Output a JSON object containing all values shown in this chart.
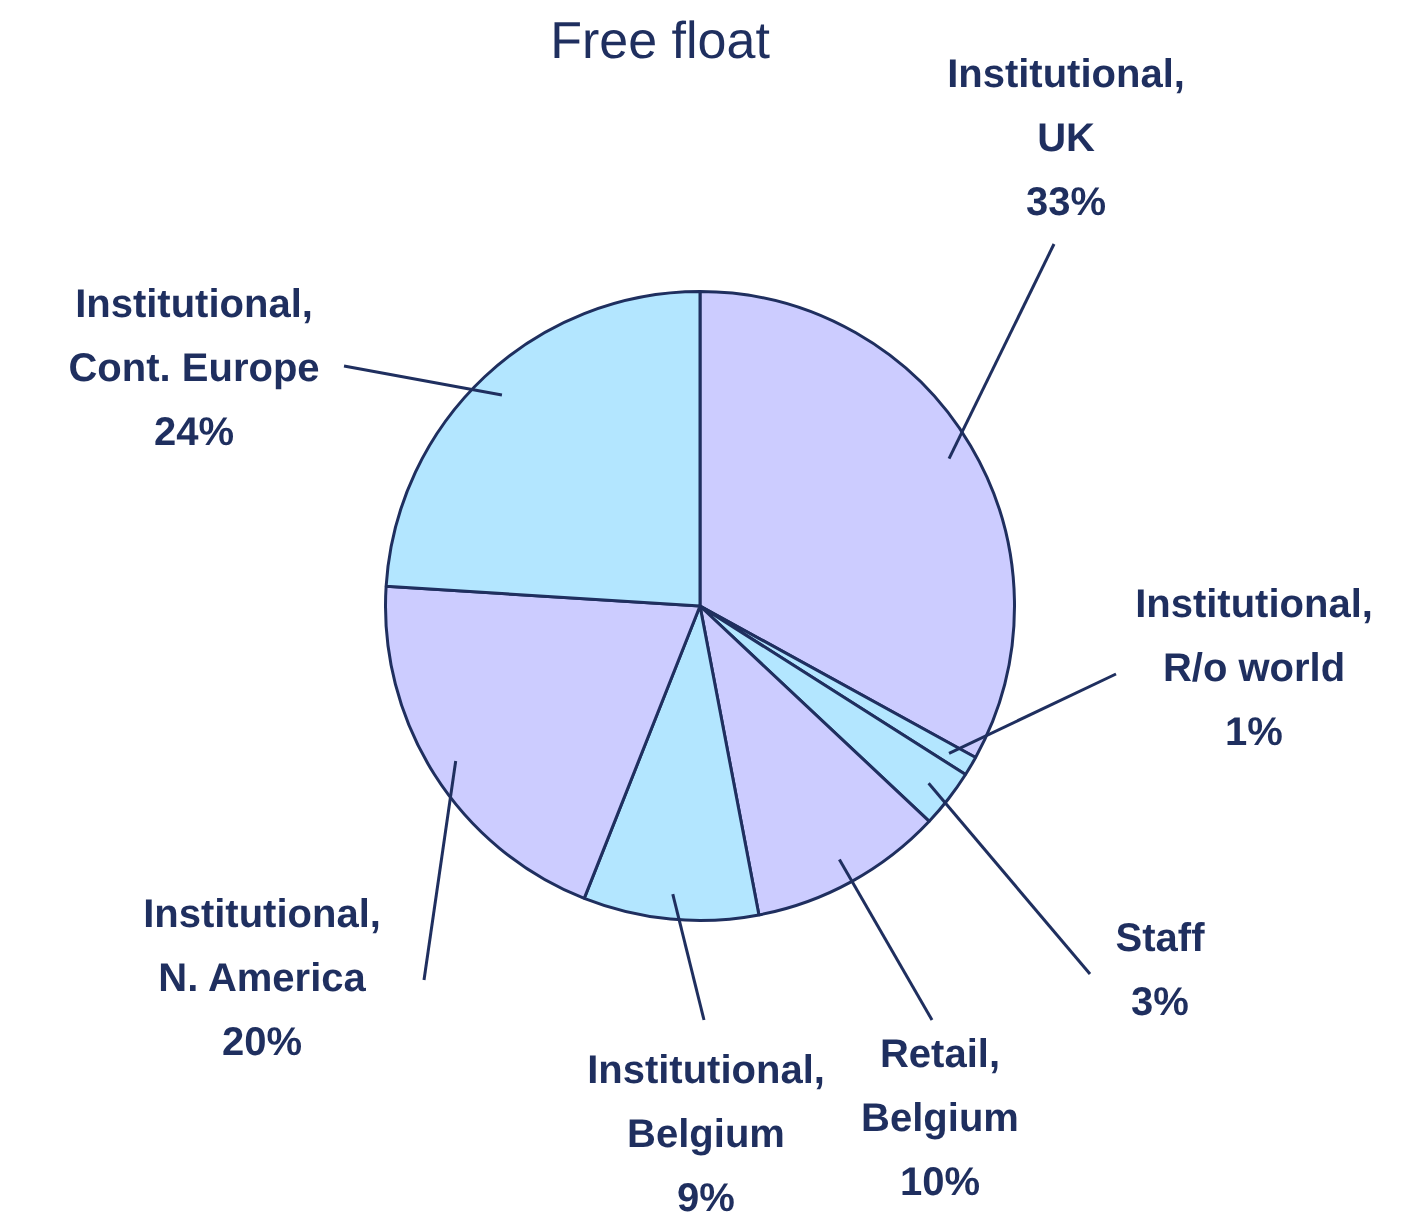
{
  "chart_data": {
    "type": "pie",
    "title": "Free float",
    "categories": [
      "Institutional, UK",
      "Institutional, R/o world",
      "Staff",
      "Retail, Belgium",
      "Institutional, Belgium",
      "Institutional, N. America",
      "Institutional, Cont. Europe"
    ],
    "values": [
      33,
      1,
      3,
      10,
      9,
      20,
      24
    ],
    "value_labels": [
      "33%",
      "1%",
      "3%",
      "10%",
      "9%",
      "20%",
      "24%"
    ],
    "colors": [
      "#ccccff",
      "#b3e6ff",
      "#b3e6ff",
      "#ccccff",
      "#b3e6ff",
      "#ccccff",
      "#b3e6ff"
    ],
    "legend": false
  }
}
